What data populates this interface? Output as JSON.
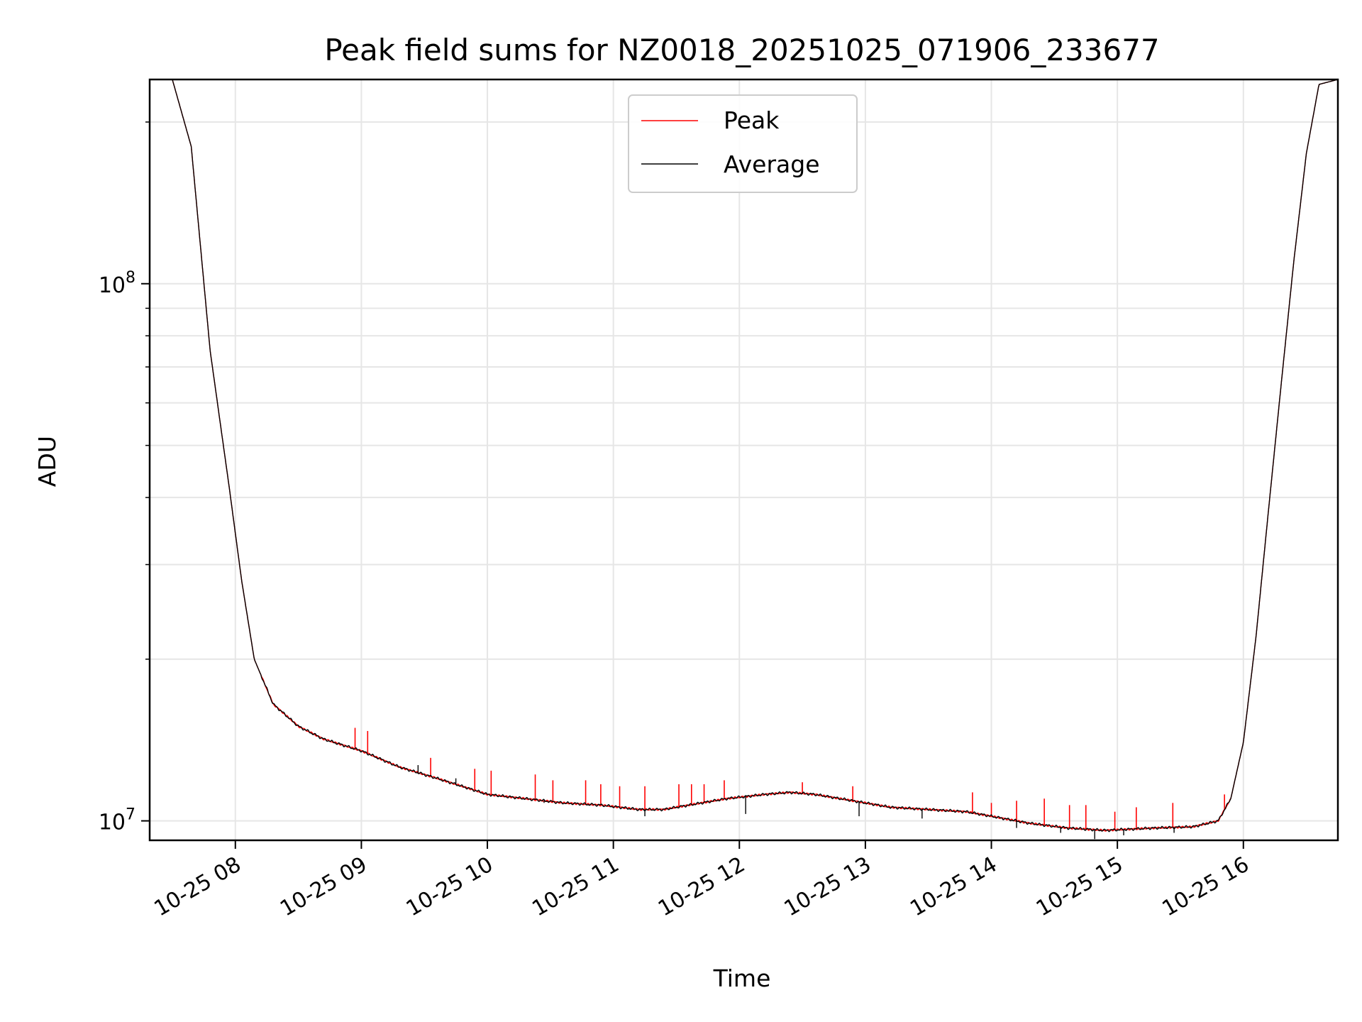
{
  "chart_data": {
    "type": "line",
    "title": "Peak field sums for NZ0018_20251025_071906_233677",
    "xlabel": "Time",
    "ylabel": "ADU",
    "yscale": "log",
    "ylim": [
      9200000,
      240000000
    ],
    "xlim": [
      7.32,
      16.75
    ],
    "xticks": [
      {
        "value": 8,
        "label": "10-25 08"
      },
      {
        "value": 9,
        "label": "10-25 09"
      },
      {
        "value": 10,
        "label": "10-25 10"
      },
      {
        "value": 11,
        "label": "10-25 11"
      },
      {
        "value": 12,
        "label": "10-25 12"
      },
      {
        "value": 13,
        "label": "10-25 13"
      },
      {
        "value": 14,
        "label": "10-25 14"
      },
      {
        "value": 15,
        "label": "10-25 15"
      },
      {
        "value": 16,
        "label": "10-25 16"
      }
    ],
    "yticks_major": [
      {
        "value": 10000000,
        "base": "10",
        "exp": "7"
      },
      {
        "value": 100000000,
        "base": "10",
        "exp": "8"
      }
    ],
    "yticks_minor": [
      20000000,
      30000000,
      40000000,
      50000000,
      60000000,
      70000000,
      80000000,
      90000000,
      200000000
    ],
    "grid": true,
    "legend": {
      "position": "top-center",
      "entries": [
        "Peak",
        "Average"
      ]
    },
    "series": [
      {
        "name": "Peak",
        "color": "#ff0000",
        "x": [
          7.32,
          7.5,
          7.65,
          7.8,
          7.95,
          8.05,
          8.15,
          8.3,
          8.5,
          8.7,
          9.0,
          9.3,
          9.6,
          9.9,
          10.0,
          10.3,
          10.6,
          10.9,
          11.2,
          11.4,
          11.6,
          11.9,
          12.2,
          12.4,
          12.6,
          12.9,
          13.2,
          13.5,
          13.8,
          14.0,
          14.3,
          14.6,
          14.9,
          15.1,
          15.3,
          15.6,
          15.8,
          15.9,
          16.0,
          16.1,
          16.2,
          16.3,
          16.4,
          16.5,
          16.6,
          16.75
        ],
        "values": [
          240000000,
          240000000,
          180000000,
          75000000,
          42000000,
          28000000,
          20000000,
          16500000,
          15000000,
          14200000,
          13500000,
          12600000,
          12000000,
          11400000,
          11200000,
          11000000,
          10800000,
          10700000,
          10500000,
          10500000,
          10700000,
          11000000,
          11200000,
          11300000,
          11200000,
          10900000,
          10600000,
          10500000,
          10400000,
          10200000,
          9900000,
          9700000,
          9600000,
          9650000,
          9700000,
          9750000,
          10000000,
          11000000,
          14000000,
          22000000,
          38000000,
          65000000,
          110000000,
          175000000,
          235000000,
          240000000
        ],
        "spikes": [
          {
            "x": 8.95,
            "value": 14900000
          },
          {
            "x": 9.05,
            "value": 14700000
          },
          {
            "x": 9.55,
            "value": 13100000
          },
          {
            "x": 9.9,
            "value": 12500000
          },
          {
            "x": 10.03,
            "value": 12400000
          },
          {
            "x": 10.38,
            "value": 12200000
          },
          {
            "x": 10.52,
            "value": 11900000
          },
          {
            "x": 10.78,
            "value": 11900000
          },
          {
            "x": 10.9,
            "value": 11700000
          },
          {
            "x": 11.05,
            "value": 11600000
          },
          {
            "x": 11.25,
            "value": 11600000
          },
          {
            "x": 11.52,
            "value": 11700000
          },
          {
            "x": 11.62,
            "value": 11700000
          },
          {
            "x": 11.72,
            "value": 11700000
          },
          {
            "x": 11.88,
            "value": 11900000
          },
          {
            "x": 12.5,
            "value": 11800000
          },
          {
            "x": 12.9,
            "value": 11600000
          },
          {
            "x": 13.85,
            "value": 11300000
          },
          {
            "x": 14.0,
            "value": 10800000
          },
          {
            "x": 14.2,
            "value": 10900000
          },
          {
            "x": 14.42,
            "value": 11000000
          },
          {
            "x": 14.62,
            "value": 10700000
          },
          {
            "x": 14.75,
            "value": 10700000
          },
          {
            "x": 14.98,
            "value": 10400000
          },
          {
            "x": 15.15,
            "value": 10600000
          },
          {
            "x": 15.44,
            "value": 10800000
          },
          {
            "x": 15.85,
            "value": 11200000
          }
        ]
      },
      {
        "name": "Average",
        "color": "#000000",
        "x": [
          7.32,
          7.5,
          7.65,
          7.8,
          7.95,
          8.05,
          8.15,
          8.3,
          8.5,
          8.7,
          9.0,
          9.3,
          9.6,
          9.9,
          10.0,
          10.3,
          10.6,
          10.9,
          11.2,
          11.4,
          11.6,
          11.9,
          12.2,
          12.4,
          12.6,
          12.9,
          13.2,
          13.5,
          13.8,
          14.0,
          14.3,
          14.6,
          14.9,
          15.1,
          15.3,
          15.6,
          15.8,
          15.9,
          16.0,
          16.1,
          16.2,
          16.3,
          16.4,
          16.5,
          16.6,
          16.75
        ],
        "values": [
          240000000,
          240000000,
          180000000,
          75000000,
          42000000,
          28000000,
          20000000,
          16500000,
          15000000,
          14200000,
          13500000,
          12600000,
          12000000,
          11400000,
          11200000,
          11000000,
          10800000,
          10700000,
          10500000,
          10500000,
          10700000,
          11000000,
          11200000,
          11300000,
          11200000,
          10900000,
          10600000,
          10500000,
          10400000,
          10200000,
          9900000,
          9700000,
          9600000,
          9650000,
          9700000,
          9750000,
          10000000,
          11000000,
          14000000,
          22000000,
          38000000,
          65000000,
          110000000,
          175000000,
          235000000,
          240000000
        ],
        "dips": [
          {
            "x": 9.45,
            "value": 12700000
          },
          {
            "x": 9.75,
            "value": 12000000
          },
          {
            "x": 10.45,
            "value": 10800000
          },
          {
            "x": 11.25,
            "value": 10200000
          },
          {
            "x": 12.05,
            "value": 10300000
          },
          {
            "x": 12.95,
            "value": 10200000
          },
          {
            "x": 13.45,
            "value": 10100000
          },
          {
            "x": 14.2,
            "value": 9700000
          },
          {
            "x": 14.55,
            "value": 9500000
          },
          {
            "x": 14.82,
            "value": 9250000
          },
          {
            "x": 15.05,
            "value": 9400000
          },
          {
            "x": 15.45,
            "value": 9500000
          }
        ]
      }
    ]
  }
}
